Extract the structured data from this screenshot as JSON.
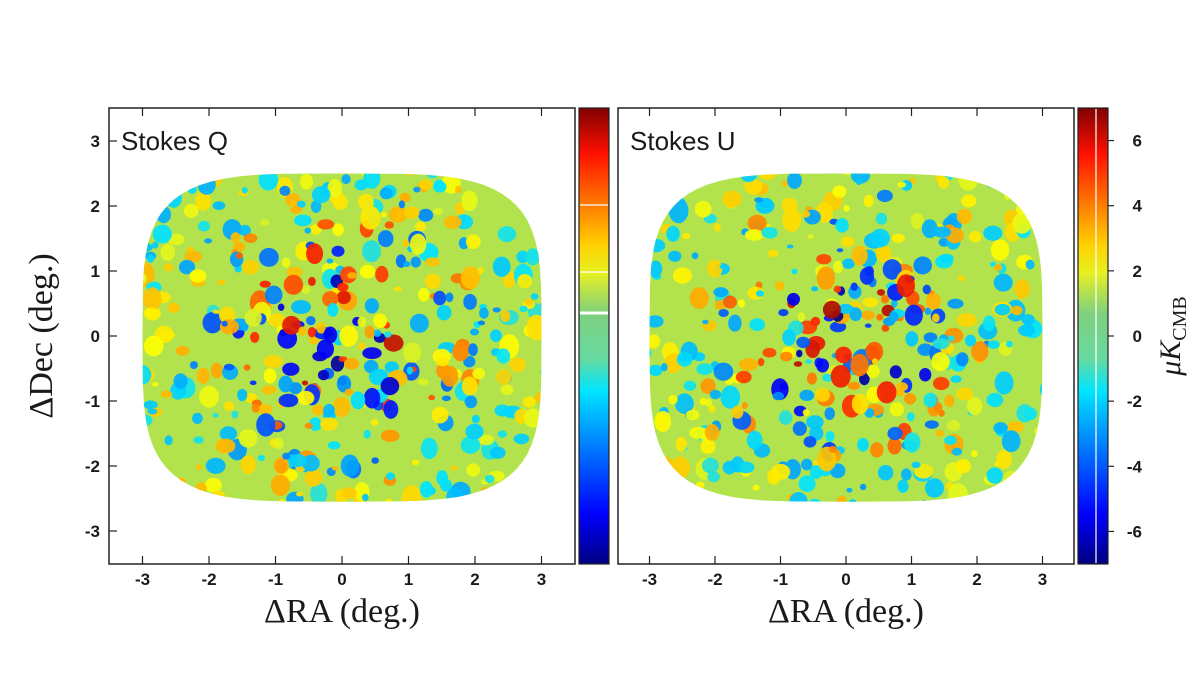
{
  "chart_data": [
    {
      "type": "heatmap",
      "title": "Stokes Q",
      "xlabel": "ΔRA (deg.)",
      "ylabel": "ΔDec (deg.)",
      "xlim": [
        -3.5,
        3.5
      ],
      "ylim": [
        -3.5,
        3.5
      ],
      "xticks": [
        -3,
        -2,
        -1,
        0,
        1,
        2,
        3
      ],
      "yticks": [
        -3,
        -2,
        -1,
        0,
        1,
        2,
        3
      ],
      "xtick_labels": [
        "-3",
        "-2",
        "-1",
        "0",
        "1",
        "2",
        "3"
      ],
      "ytick_labels": [
        "-3",
        "-2",
        "-1",
        "0",
        "1",
        "2",
        "3"
      ],
      "colorbar": {
        "range": [
          -7,
          7
        ],
        "ticks": [],
        "label": ""
      },
      "map_description": "noisy polarization map filling a rounded field of about ±3 deg; amplitude strongest near the center"
    },
    {
      "type": "heatmap",
      "title": "Stokes U",
      "xlabel": "ΔRA (deg.)",
      "ylabel": "",
      "xlim": [
        -3.5,
        3.5
      ],
      "ylim": [
        -3.5,
        3.5
      ],
      "xticks": [
        -3,
        -2,
        -1,
        0,
        1,
        2,
        3
      ],
      "xtick_labels": [
        "-3",
        "-2",
        "-1",
        "0",
        "1",
        "2",
        "3"
      ],
      "colorbar": {
        "range": [
          -7,
          7
        ],
        "ticks": [
          6,
          4,
          2,
          0,
          -2,
          -4,
          -6
        ],
        "tick_labels": [
          "6",
          "4",
          "2",
          "0",
          "-2",
          "-4",
          "-6"
        ],
        "label": "μK",
        "label_sub": "CMB"
      },
      "map_description": "noisy polarization map filling a rounded field of about ±3 deg; amplitude strongest near the center"
    }
  ],
  "colors": {
    "colormap": [
      "#000080",
      "#0000ff",
      "#00a0ff",
      "#00e5ff",
      "#7fd17f",
      "#ffff00",
      "#ffaa00",
      "#ff2000",
      "#800000"
    ],
    "background_field": "#7fd17f",
    "axes": "#222222"
  }
}
